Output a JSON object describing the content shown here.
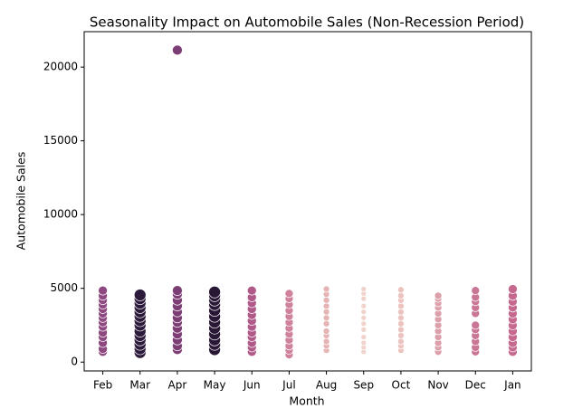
{
  "chart_data": {
    "type": "scatter",
    "title": "Seasonality Impact on Automobile Sales (Non-Recession Period)",
    "x_label": "Month",
    "y_label": "Automobile Sales",
    "ylim": [
      -600,
      22400
    ],
    "yticks": [
      0,
      5000,
      10000,
      15000,
      20000
    ],
    "groups": [
      {
        "category": "Feb",
        "color": "#8e4a80",
        "size": 5,
        "values": [
          700,
          900,
          1300,
          1700,
          2000,
          2400,
          2700,
          3000,
          3300,
          3600,
          3900,
          4200,
          4500,
          4850
        ]
      },
      {
        "category": "Mar",
        "color": "#2b1a3a",
        "size": 6.5,
        "values": [
          650,
          900,
          1200,
          1500,
          1800,
          2100,
          2500,
          2800,
          3100,
          3400,
          3700,
          4000,
          4300,
          4550
        ]
      },
      {
        "category": "Apr",
        "color": "#7d3e75",
        "size": 5.5,
        "values": [
          850,
          1100,
          1500,
          1900,
          2300,
          2700,
          3000,
          3400,
          3800,
          4200,
          4600,
          4850,
          21150
        ]
      },
      {
        "category": "May",
        "color": "#281735",
        "size": 6.5,
        "values": [
          850,
          1200,
          1500,
          1900,
          2300,
          2700,
          3100,
          3500,
          3900,
          4200,
          4500,
          4750
        ]
      },
      {
        "category": "Jun",
        "color": "#b05a8a",
        "size": 5,
        "values": [
          700,
          1000,
          1300,
          1700,
          2000,
          2400,
          2800,
          3200,
          3600,
          4000,
          4400,
          4850
        ]
      },
      {
        "category": "Jul",
        "color": "#d0829c",
        "size": 4.5,
        "values": [
          500,
          800,
          1100,
          1500,
          1900,
          2300,
          2700,
          3100,
          3500,
          3900,
          4300,
          4650
        ]
      },
      {
        "category": "Aug",
        "color": "#e6b4b4",
        "size": 3.5,
        "values": [
          800,
          1100,
          1400,
          1800,
          2100,
          2600,
          3000,
          3400,
          3800,
          4200,
          4600,
          4950
        ]
      },
      {
        "category": "Sep",
        "color": "#f0d3cb",
        "size": 3,
        "values": [
          700,
          1000,
          1300,
          1700,
          2200,
          2600,
          3000,
          3400,
          3800,
          4300,
          4650,
          4950
        ]
      },
      {
        "category": "Oct",
        "color": "#ecc3bf",
        "size": 3.5,
        "values": [
          800,
          1100,
          1400,
          1800,
          2200,
          2600,
          3000,
          3400,
          3800,
          4200,
          4500,
          4900
        ]
      },
      {
        "category": "Nov",
        "color": "#dba0aa",
        "size": 4,
        "values": [
          700,
          1000,
          1300,
          1700,
          2100,
          2500,
          2900,
          3300,
          3700,
          4000,
          4300,
          4500
        ]
      },
      {
        "category": "Dec",
        "color": "#c97595",
        "size": 4.5,
        "values": [
          700,
          1000,
          1400,
          1800,
          2200,
          2500,
          3300,
          3700,
          4100,
          4400,
          4850
        ]
      },
      {
        "category": "Jan",
        "color": "#c56a8e",
        "size": 5,
        "values": [
          700,
          1000,
          1300,
          1700,
          2100,
          2500,
          2900,
          3300,
          3700,
          4100,
          4500,
          4950
        ]
      }
    ]
  }
}
